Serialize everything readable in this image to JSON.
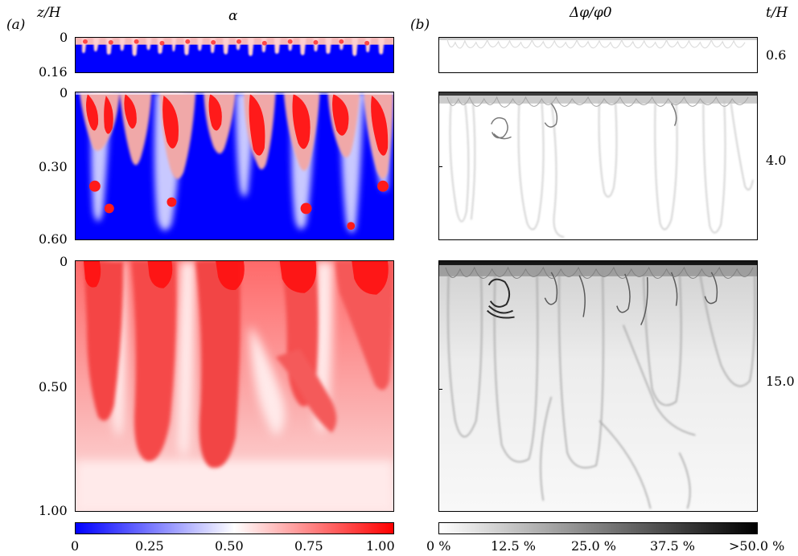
{
  "figure": {
    "panel_a_tag": "(a)",
    "panel_b_tag": "(b)",
    "z_axis_label": "z/H",
    "t_axis_label": "t/H",
    "alpha_title": "α",
    "dphi_title": "Δφ/φ0",
    "rows": [
      {
        "time": "0.6",
        "z_ticks": [
          "0",
          "0.16"
        ]
      },
      {
        "time": "4.0",
        "z_ticks": [
          "0",
          "0.30",
          "0.60"
        ]
      },
      {
        "time": "15.0",
        "z_ticks": [
          "0",
          "0.50",
          "1.00"
        ]
      }
    ],
    "alpha_colorbar": {
      "ticks": [
        "0",
        "0.25",
        "0.50",
        "0.75",
        "1.00"
      ],
      "colors": [
        "#0000ff",
        "#ffffff",
        "#ff0000"
      ]
    },
    "dphi_colorbar": {
      "ticks": [
        "0 %",
        "12.5 %",
        "25.0 %",
        "37.5 %",
        ">50.0 %"
      ],
      "colors": [
        "#ffffff",
        "#000000"
      ]
    }
  }
}
